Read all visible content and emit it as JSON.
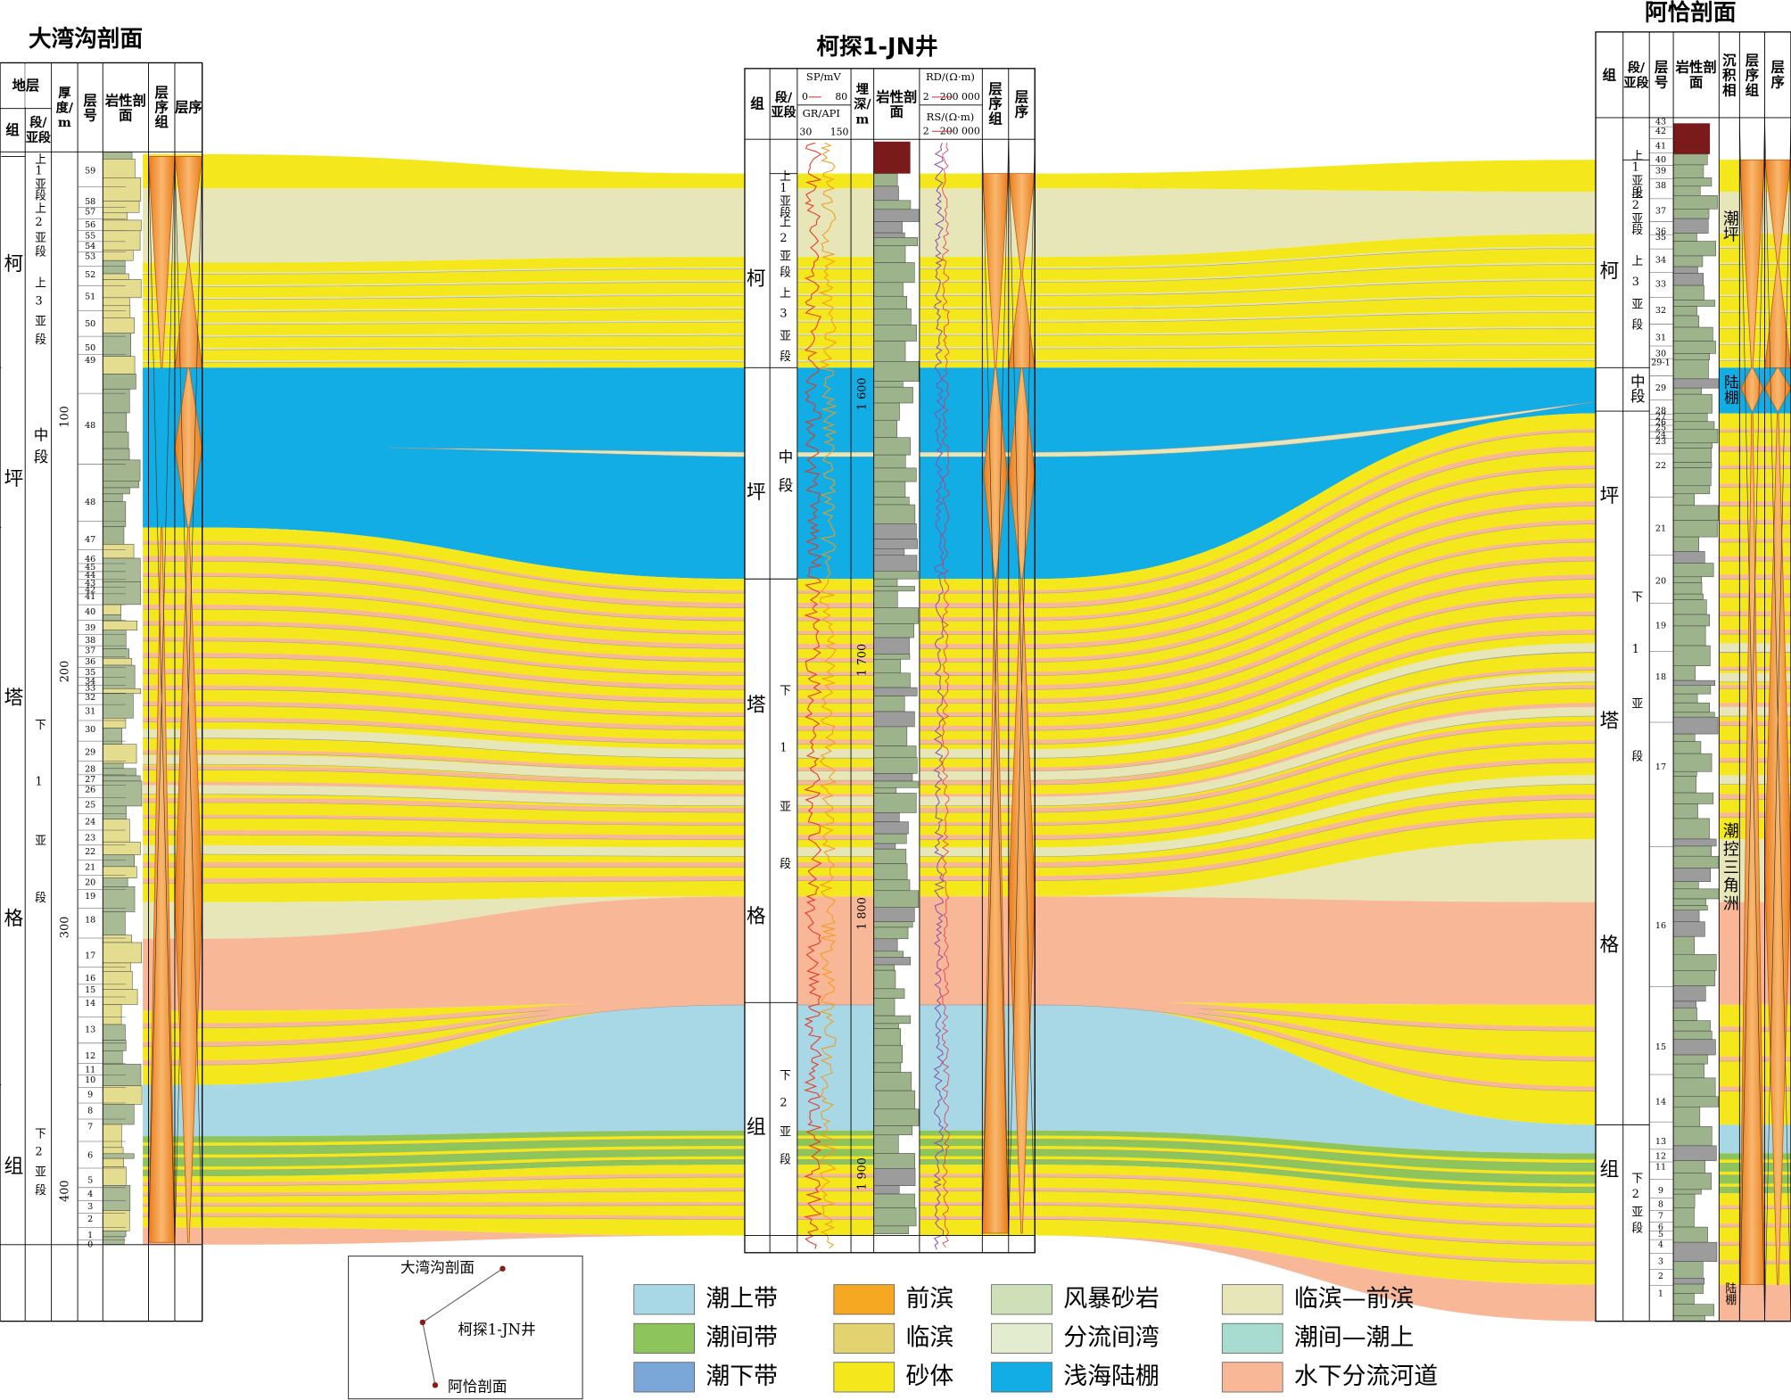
{
  "left": {
    "title": "大湾沟剖面",
    "headers": {
      "strata": "地层",
      "group": "组",
      "member": "段/亚段",
      "thickness": "厚度/m",
      "layer": "层号",
      "lithology": "岩性剖面",
      "seq_set": "层序组",
      "seq": "层序"
    },
    "formation": [
      "柯",
      "坪",
      "塔",
      "格",
      "组"
    ],
    "members": [
      "上1亚段",
      "上2亚段",
      "上3亚段",
      "中段",
      "下1亚段",
      "下2亚段"
    ],
    "thickness": [
      100,
      200,
      300,
      400
    ],
    "layers": [
      59,
      58,
      57,
      56,
      55,
      54,
      53,
      52,
      51,
      50,
      50,
      49,
      48,
      48,
      47,
      46,
      45,
      44,
      43,
      42,
      41,
      40,
      39,
      38,
      37,
      36,
      35,
      34,
      33,
      32,
      31,
      30,
      29,
      28,
      27,
      26,
      25,
      24,
      23,
      22,
      21,
      20,
      19,
      18,
      17,
      16,
      15,
      14,
      13,
      12,
      11,
      10,
      9,
      8,
      7,
      6,
      5,
      4,
      3,
      2,
      1,
      0
    ]
  },
  "middle": {
    "title": "柯探1-JN井",
    "headers": {
      "group": "组",
      "member": "段/亚段",
      "sp": "SP/mV",
      "sp_min": "0",
      "sp_max": "80",
      "gr": "GR/API",
      "gr_min": "30",
      "gr_max": "150",
      "depth": "埋深/m",
      "lithology": "岩性剖面",
      "rd": "RD/(Ω·m)",
      "rd_min": "2",
      "rd_max": "200 000",
      "rs": "RS/(Ω·m)",
      "rs_min": "2",
      "rs_max": "200 000",
      "seq_set": "层序组",
      "seq": "层序"
    },
    "formation": [
      "柯",
      "坪",
      "塔",
      "格",
      "组"
    ],
    "members": [
      "上1亚段",
      "上2亚段",
      "上3亚段",
      "中段",
      "下1亚段",
      "下2亚段"
    ],
    "depths": [
      "1 600",
      "1 700",
      "1 800",
      "1 900"
    ]
  },
  "right": {
    "title": "阿恰剖面",
    "headers": {
      "group": "组",
      "member": "段/亚段",
      "layer": "层号",
      "lithology": "岩性剖面",
      "facies": "沉积相",
      "seq_set": "层序组",
      "seq": "层序"
    },
    "formation": [
      "柯",
      "坪",
      "塔",
      "格",
      "组"
    ],
    "members": [
      "上1亚段",
      "上2亚段",
      "上3亚段",
      "中段",
      "下1亚段",
      "下2亚段"
    ],
    "facies": [
      "潮坪",
      "陆棚",
      "潮控三角洲",
      "陆棚"
    ],
    "layers": [
      43,
      42,
      41,
      40,
      39,
      38,
      37,
      36,
      35,
      34,
      33,
      32,
      31,
      30,
      "29-1",
      29,
      28,
      27,
      26,
      25,
      24,
      23,
      22,
      21,
      20,
      19,
      18,
      17,
      16,
      15,
      14,
      13,
      12,
      11,
      9,
      8,
      7,
      6,
      5,
      4,
      3,
      2,
      1
    ]
  },
  "legend": [
    {
      "label": "潮上带",
      "color": "#a8d8e6"
    },
    {
      "label": "潮间带",
      "color": "#8ec45c"
    },
    {
      "label": "潮下带",
      "color": "#7aa6d8"
    },
    {
      "label": "前滨",
      "color": "#f7a823"
    },
    {
      "label": "临滨",
      "color": "#e2d270"
    },
    {
      "label": "砂体",
      "color": "#f4e81c"
    },
    {
      "label": "风暴砂岩",
      "color": "#cfe0b8"
    },
    {
      "label": "分流间湾",
      "color": "#e4ecd0"
    },
    {
      "label": "浅海陆棚",
      "color": "#11ade4"
    },
    {
      "label": "临滨—前滨",
      "color": "#e7e6b8"
    },
    {
      "label": "潮间—潮上",
      "color": "#a8dcd0"
    },
    {
      "label": "水下分流河道",
      "color": "#f8b898"
    }
  ],
  "inset": {
    "points": [
      "大湾沟剖面",
      "柯探1-JN井",
      "阿恰剖面"
    ]
  }
}
